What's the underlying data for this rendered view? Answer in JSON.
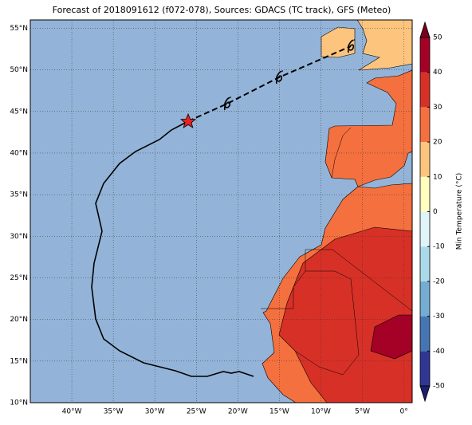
{
  "title": "Forecast of 2018091612 (f072-078), Sources: GDACS (TC track), GFS (Meteo)",
  "map": {
    "xlim": [
      -45,
      1
    ],
    "ylim": [
      10,
      56
    ],
    "grid": true,
    "ocean_color": "#93b4d8",
    "xticks": [
      {
        "value": -40,
        "label": "40°W"
      },
      {
        "value": -35,
        "label": "35°W"
      },
      {
        "value": -30,
        "label": "30°W"
      },
      {
        "value": -25,
        "label": "25°W"
      },
      {
        "value": -20,
        "label": "20°W"
      },
      {
        "value": -15,
        "label": "15°W"
      },
      {
        "value": -10,
        "label": "10°W"
      },
      {
        "value": -5,
        "label": "5°W"
      },
      {
        "value": 0,
        "label": "0°"
      }
    ],
    "yticks": [
      {
        "value": 10,
        "label": "10°N"
      },
      {
        "value": 15,
        "label": "15°N"
      },
      {
        "value": 20,
        "label": "20°N"
      },
      {
        "value": 25,
        "label": "25°N"
      },
      {
        "value": 30,
        "label": "30°N"
      },
      {
        "value": 35,
        "label": "35°N"
      },
      {
        "value": 40,
        "label": "40°N"
      },
      {
        "value": 45,
        "label": "45°N"
      },
      {
        "value": 50,
        "label": "50°N"
      },
      {
        "value": 55,
        "label": "55°N"
      }
    ]
  },
  "colorbar": {
    "label": "Min Temperature (°C)",
    "lim": [
      -50,
      50
    ],
    "ticks": [
      -50,
      -40,
      -30,
      -20,
      -10,
      0,
      10,
      20,
      30,
      40,
      50
    ],
    "colors": [
      "#313695",
      "#4575b4",
      "#74add1",
      "#abd9e9",
      "#e0f3f8",
      "#ffffbf",
      "#fdc47e",
      "#f4703f",
      "#d73027",
      "#a50026"
    ],
    "under_color": "#1c1f6b",
    "over_color": "#7a0020"
  }
}
